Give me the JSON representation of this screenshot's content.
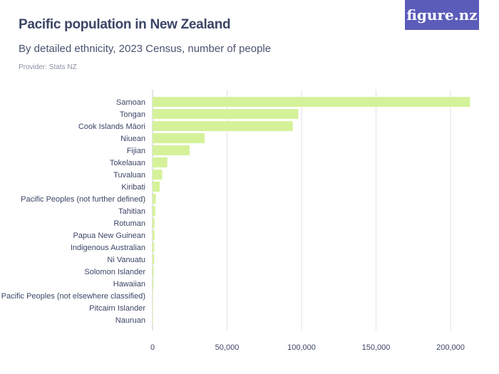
{
  "header": {
    "title": "Pacific population in New Zealand",
    "subtitle": "By detailed ethnicity, 2023 Census, number of people",
    "provider": "Provider: Stats NZ",
    "logo": "figure.nz"
  },
  "chart_data": {
    "type": "bar",
    "orientation": "horizontal",
    "title": "Pacific population in New Zealand",
    "subtitle": "By detailed ethnicity, 2023 Census, number of people",
    "categories": [
      "Samoan",
      "Tongan",
      "Cook Islands Māori",
      "Niuean",
      "Fijian",
      "Tokelauan",
      "Tuvaluan",
      "Kiribati",
      "Pacific Peoples (not further defined)",
      "Tahitian",
      "Rotuman",
      "Papua New Guinean",
      "Indigenous Australian",
      "Ni Vanuatu",
      "Solomon Islander",
      "Hawaiian",
      "Pacific Peoples (not elsewhere classified)",
      "Pitcairn Islander",
      "Nauruan"
    ],
    "values": [
      213069,
      97824,
      94176,
      34944,
      24900,
      9900,
      6500,
      4800,
      2200,
      1800,
      1300,
      1300,
      1100,
      1100,
      800,
      600,
      300,
      100,
      100
    ],
    "xlim": [
      0,
      220000
    ],
    "xticks": [
      0,
      50000,
      100000,
      150000,
      200000
    ],
    "xtick_labels": [
      "0",
      "50,000",
      "100,000",
      "150,000",
      "200,000"
    ],
    "grid": true,
    "colors": {
      "bar": "#d5f29a",
      "grid": "#e2e2e2",
      "text": "#3b4566",
      "logo_bg": "#5b5cb9"
    }
  }
}
